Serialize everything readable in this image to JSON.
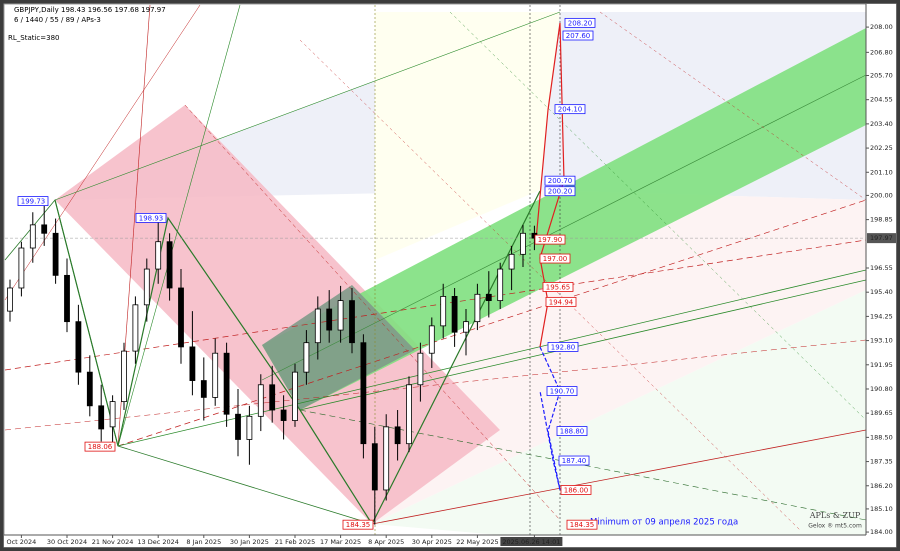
{
  "header": {
    "symbol_line": "GBPJPY,Daily  198.43 196.56 197.68 197.97",
    "settings": "6 / 1440 / 55 / 89 / APs-3",
    "rl_static": "RL_Static=380"
  },
  "chart_data": {
    "type": "candlestick",
    "categories": [
      null,
      "Oct 2024",
      null,
      null,
      null,
      "30 Oct 2024",
      null,
      null,
      null,
      "21 Nov 2024",
      null,
      null,
      null,
      "13 Dec 2024",
      null,
      null,
      null,
      "8 Jan 2025",
      null,
      null,
      null,
      "30 Jan 2025",
      null,
      null,
      null,
      "21 Feb 2025",
      null,
      null,
      null,
      "17 Mar 2025",
      null,
      null,
      null,
      "8 Apr 2025",
      null,
      null,
      null,
      "30 Apr 2025",
      null,
      null,
      null,
      "22 May 2025",
      null,
      null,
      null,
      null,
      "2025.06.26 14:01"
    ],
    "open": [
      194.5,
      195.6,
      197.5,
      198.6,
      198.2,
      196.2,
      194.0,
      191.6,
      190.0,
      189.0,
      190.2,
      192.6,
      194.8,
      196.5,
      197.8,
      195.6,
      192.8,
      191.2,
      190.4,
      192.5,
      189.6,
      188.4,
      189.5,
      191.0,
      189.8,
      189.3,
      191.6,
      193.0,
      194.6,
      193.6,
      195.0,
      193.0,
      188.2,
      186.0,
      189.0,
      188.2,
      191.0,
      192.5,
      193.8,
      195.2,
      193.5,
      194.0,
      195.3,
      195.0,
      196.5,
      197.2,
      198.2
    ],
    "high": [
      196.0,
      197.8,
      199.2,
      199.73,
      198.9,
      197.0,
      194.8,
      192.4,
      191.0,
      190.5,
      193.0,
      195.2,
      197.0,
      198.93,
      198.2,
      196.5,
      194.5,
      192.3,
      193.2,
      193.0,
      190.8,
      190.0,
      191.5,
      191.9,
      190.5,
      192.0,
      193.6,
      195.2,
      195.5,
      195.7,
      195.6,
      193.4,
      189.0,
      189.6,
      189.8,
      191.4,
      193.0,
      194.2,
      195.8,
      195.6,
      194.6,
      195.8,
      196.4,
      196.8,
      197.6,
      198.6,
      198.56
    ],
    "low": [
      194.0,
      195.2,
      196.8,
      197.6,
      195.8,
      193.5,
      191.0,
      189.5,
      188.3,
      188.06,
      189.8,
      192.0,
      194.0,
      195.8,
      195.0,
      192.0,
      190.5,
      189.3,
      190.0,
      189.0,
      187.6,
      187.2,
      188.8,
      189.2,
      188.4,
      189.0,
      191.0,
      192.2,
      193.0,
      193.0,
      192.5,
      187.5,
      184.35,
      185.5,
      187.4,
      187.8,
      190.2,
      191.8,
      193.2,
      192.8,
      192.4,
      193.6,
      194.2,
      194.6,
      195.5,
      196.6,
      197.4
    ],
    "close": [
      195.6,
      197.5,
      198.6,
      198.2,
      196.2,
      194.0,
      191.6,
      190.0,
      188.9,
      190.2,
      192.6,
      194.8,
      196.5,
      197.8,
      195.6,
      192.8,
      191.2,
      190.4,
      192.5,
      189.6,
      188.4,
      189.5,
      191.0,
      189.8,
      189.3,
      191.6,
      193.0,
      194.6,
      193.6,
      195.0,
      193.0,
      188.2,
      186.0,
      189.0,
      188.2,
      191.0,
      192.5,
      193.8,
      195.2,
      193.5,
      194.0,
      195.3,
      195.0,
      196.5,
      197.2,
      198.2,
      197.97
    ],
    "ylim": [
      183.86,
      209.05
    ],
    "yticks": [
      {
        "value": 208,
        "label": "208.00"
      },
      {
        "value": 206.8,
        "label": "206.80"
      },
      {
        "value": 205.7,
        "label": "205.70"
      },
      {
        "value": 204.55,
        "label": "204.55"
      },
      {
        "value": 203.4,
        "label": "203.40"
      },
      {
        "value": 202.25,
        "label": "202.25"
      },
      {
        "value": 201.1,
        "label": "201.10"
      },
      {
        "value": 200,
        "label": "200.00"
      },
      {
        "value": 198.85,
        "label": "198.85"
      },
      {
        "value": 196.55,
        "label": "196.55"
      },
      {
        "value": 195.4,
        "label": "195.40"
      },
      {
        "value": 194.25,
        "label": "194.25"
      },
      {
        "value": 193.1,
        "label": "193.10"
      },
      {
        "value": 191.95,
        "label": "191.95"
      },
      {
        "value": 190.8,
        "label": "190.80"
      },
      {
        "value": 189.65,
        "label": "189.65"
      },
      {
        "value": 188.5,
        "label": "188.50"
      },
      {
        "value": 187.35,
        "label": "187.35"
      },
      {
        "value": 186.2,
        "label": "186.20"
      },
      {
        "value": 185.1,
        "label": "185.10"
      },
      {
        "value": 184,
        "label": "184.00"
      }
    ],
    "current_price": {
      "value": 197.97,
      "label": "197.97"
    },
    "annotations": [
      {
        "value": 199.73,
        "label": "199.73",
        "color": "#1a1aff"
      },
      {
        "value": 198.93,
        "label": "198.93",
        "color": "#1a1aff"
      },
      {
        "value": 188.06,
        "label": "188.06",
        "color": "#e01010"
      },
      {
        "value": 184.35,
        "label": "184.35",
        "color": "#e01010"
      },
      {
        "value": 208.2,
        "label": "208.20",
        "color": "#1a1aff"
      },
      {
        "value": 207.6,
        "label": "207.60",
        "color": "#1a1aff"
      },
      {
        "value": 204.1,
        "label": "204.10",
        "color": "#1a1aff"
      },
      {
        "value": 200.7,
        "label": "200.70",
        "color": "#1a1aff"
      },
      {
        "value": 200.2,
        "label": "200.20",
        "color": "#1a1aff"
      },
      {
        "value": 197.9,
        "label": "197.90",
        "color": "#e01010"
      },
      {
        "value": 197,
        "label": "197.00",
        "color": "#e01010"
      },
      {
        "value": 195.65,
        "label": "195.65",
        "color": "#e01010"
      },
      {
        "value": 194.94,
        "label": "194.94",
        "color": "#e01010"
      },
      {
        "value": 192.8,
        "label": "192.80",
        "color": "#1a1aff"
      },
      {
        "value": 190.7,
        "label": "190.70",
        "color": "#1a1aff"
      },
      {
        "value": 188.8,
        "label": "188.80",
        "color": "#1a1aff"
      },
      {
        "value": 187.4,
        "label": "187.40",
        "color": "#1a1aff"
      },
      {
        "value": 186,
        "label": "186.00",
        "color": "#e01010"
      },
      {
        "value": 184.35,
        "label": "184.35",
        "color": "#e01010"
      }
    ],
    "note": "Minimum от 09 апреля 2025 года",
    "watermark": [
      "APLs & ZUP",
      "Gelox ® mt5.com"
    ]
  }
}
